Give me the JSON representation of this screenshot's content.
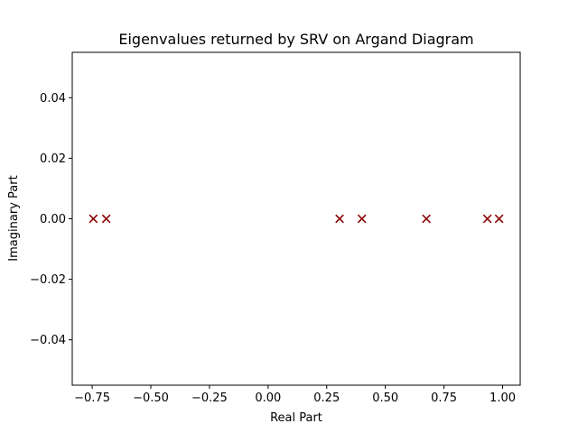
{
  "chart_data": {
    "type": "scatter",
    "title": "Eigenvalues returned by SRV on Argand Diagram",
    "xlabel": "Real Part",
    "ylabel": "Imaginary Part",
    "xlim": [
      -0.835,
      1.075
    ],
    "ylim": [
      -0.055,
      0.055
    ],
    "xticks": [
      -0.75,
      -0.5,
      -0.25,
      0.0,
      0.25,
      0.5,
      0.75,
      1.0
    ],
    "xtick_labels": [
      "−0.75",
      "−0.50",
      "−0.25",
      "0.00",
      "0.25",
      "0.50",
      "0.75",
      "1.00"
    ],
    "yticks": [
      -0.04,
      -0.02,
      0.0,
      0.02,
      0.04
    ],
    "ytick_labels": [
      "−0.04",
      "−0.02",
      "0.00",
      "0.02",
      "0.04"
    ],
    "marker": "x",
    "marker_color": "#8b0000",
    "grid": false,
    "points": [
      {
        "x": -0.745,
        "y": 0.0
      },
      {
        "x": -0.69,
        "y": 0.0
      },
      {
        "x": 0.305,
        "y": 0.0
      },
      {
        "x": 0.4,
        "y": 0.0
      },
      {
        "x": 0.675,
        "y": 0.0
      },
      {
        "x": 0.935,
        "y": 0.0
      },
      {
        "x": 0.985,
        "y": 0.0
      }
    ]
  }
}
